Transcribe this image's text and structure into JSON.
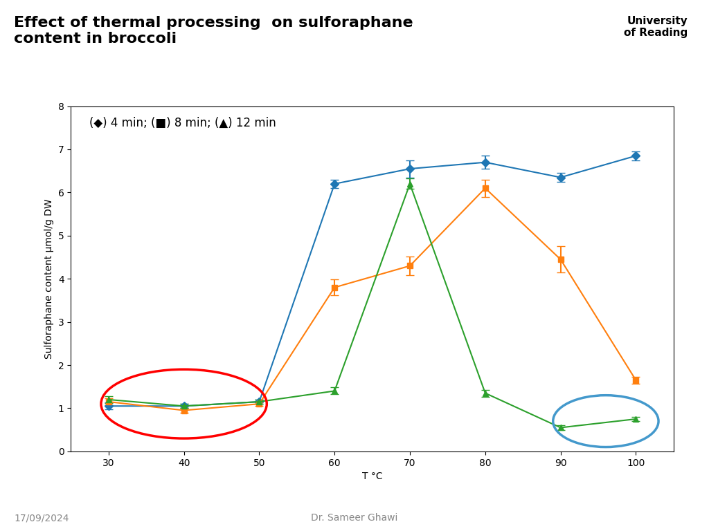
{
  "chart_data": {
    "type": "line",
    "title": "Effect of thermal processing  on sulforaphane\ncontent in broccoli",
    "xlabel": "T °C",
    "ylabel": "Sulforaphane content μmol/g DW",
    "x": [
      30,
      40,
      50,
      60,
      70,
      80,
      90,
      100
    ],
    "series": [
      {
        "marker": "diamond",
        "values": [
          1.05,
          1.05,
          1.15,
          6.2,
          6.55,
          6.7,
          6.35,
          6.85
        ],
        "errors": [
          0.08,
          0.05,
          0.05,
          0.1,
          0.2,
          0.15,
          0.1,
          0.1
        ]
      },
      {
        "marker": "square",
        "values": [
          1.15,
          0.95,
          1.1,
          3.8,
          4.3,
          6.1,
          4.45,
          1.65
        ],
        "errors": [
          0.08,
          0.06,
          0.05,
          0.18,
          0.22,
          0.2,
          0.3,
          0.08
        ]
      },
      {
        "marker": "triangle",
        "values": [
          1.2,
          1.05,
          1.15,
          1.4,
          6.2,
          1.35,
          0.55,
          0.75
        ],
        "errors": [
          0.08,
          0.05,
          0.05,
          0.08,
          0.12,
          0.08,
          0.05,
          0.05
        ]
      }
    ],
    "xlim": [
      25,
      105
    ],
    "ylim": [
      0,
      8
    ],
    "xticks": [
      30,
      40,
      50,
      60,
      70,
      80,
      90,
      100
    ],
    "yticks": [
      0,
      1,
      2,
      3,
      4,
      5,
      6,
      7,
      8
    ],
    "annotations": [
      "(◆) 4 min; (■) 8 min; (▲) 12 min"
    ],
    "highlights": [
      {
        "center": [
          40,
          1.1
        ],
        "width": 22,
        "height": 1.6,
        "color": "red"
      },
      {
        "center": [
          96,
          0.7
        ],
        "width": 14,
        "height": 1.2,
        "color": "#4499cc"
      }
    ],
    "logo_text": "University\nof Reading",
    "footer": [
      "17/09/2024",
      "Dr. Sameer Ghawi"
    ]
  }
}
